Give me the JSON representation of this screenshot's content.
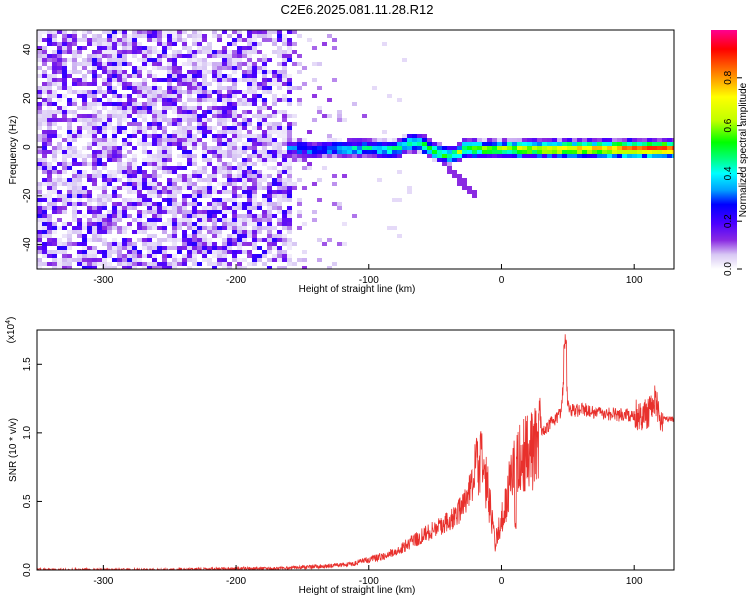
{
  "chart_data": [
    {
      "type": "heatmap",
      "title": "C2E6.2025.081.11.28.R12",
      "xlabel": "Height of straight line (km)",
      "ylabel": "Frequency (Hz)",
      "xlim": [
        -350,
        130
      ],
      "ylim": [
        -50,
        48
      ],
      "xticks": [
        -300,
        -200,
        -100,
        0,
        100
      ],
      "yticks": [
        -40,
        -20,
        0,
        20,
        40
      ],
      "colorbar": {
        "label": "Normalized spectral amplitude",
        "range": [
          0.0,
          1.0
        ],
        "ticks": [
          "0.0",
          "0.2",
          "0.4",
          "0.6",
          "0.8"
        ],
        "colormap": [
          "#ffffff",
          "#d8c8f4",
          "#8a2be2",
          "#4b00ff",
          "#0000ff",
          "#00a0ff",
          "#00ffff",
          "#00ff80",
          "#00ff00",
          "#c0ff00",
          "#ffff00",
          "#ff8000",
          "#ff0000",
          "#ff0090"
        ]
      },
      "features": {
        "noise_region_x": [
          -350,
          -160
        ],
        "fading_noise_x": [
          -160,
          -100
        ],
        "signal_band_x": [
          -165,
          130
        ],
        "signal_center_freq": 0,
        "signal_halfwidth": 3,
        "secondary_trace": [
          [
            -42,
            -8
          ],
          [
            -20,
            -20
          ]
        ]
      }
    },
    {
      "type": "line",
      "xlabel": "Height of straight line (km)",
      "ylabel": "SNR (10 * v/v)",
      "yscale_label": "(x10",
      "yscale_exp": "4",
      "yscale_close": ")",
      "xlim": [
        -350,
        130
      ],
      "ylim": [
        0,
        1.75
      ],
      "xticks": [
        -300,
        -200,
        -100,
        0,
        100
      ],
      "yticks": [
        "0.0",
        "0.5",
        "1.0",
        "1.5"
      ],
      "color": "#e8302c",
      "series": [
        {
          "x": [
            -350,
            -300,
            -250,
            -200,
            -170,
            -150,
            -130,
            -110,
            -90,
            -75,
            -60,
            -50,
            -40,
            -30,
            -25,
            -20,
            -15,
            -10,
            -5,
            0,
            5,
            10,
            15,
            20,
            25,
            30,
            35,
            40,
            45,
            48,
            50,
            55,
            60,
            70,
            80,
            90,
            100,
            110,
            115,
            120,
            125,
            130
          ],
          "y": [
            0.0,
            0.0,
            0.0,
            0.01,
            0.01,
            0.02,
            0.03,
            0.05,
            0.1,
            0.16,
            0.25,
            0.3,
            0.35,
            0.45,
            0.55,
            0.7,
            0.78,
            0.55,
            0.2,
            0.35,
            0.6,
            0.75,
            0.8,
            0.85,
            0.9,
            1.0,
            1.05,
            1.1,
            1.15,
            1.55,
            1.2,
            1.15,
            1.18,
            1.15,
            1.14,
            1.13,
            1.12,
            1.14,
            1.25,
            1.12,
            1.1,
            1.1
          ]
        }
      ]
    }
  ]
}
